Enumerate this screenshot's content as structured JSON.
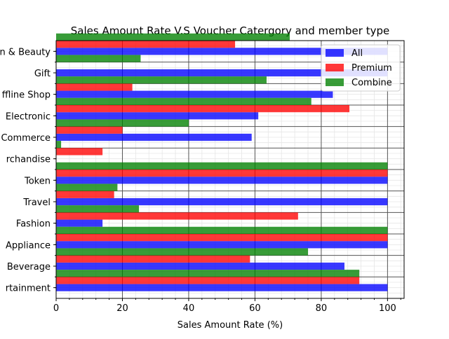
{
  "chart_data": {
    "type": "bar",
    "orientation": "horizontal",
    "title": "Sales Amount Rate V.S Voucher Catergory and member type",
    "xlabel": "Sales Amount Rate (%)",
    "ylabel": "",
    "xlim": [
      0,
      105
    ],
    "xticks": [
      0,
      20,
      40,
      60,
      80,
      100
    ],
    "grid": true,
    "legend_position": "top-right",
    "categories": [
      "Entertainment",
      "Beverage",
      "Appliance",
      "Fashion",
      "Travel",
      "Token",
      "Merchandise",
      "E-Commerce",
      "Electronic",
      "Offline Shop",
      "Gift",
      "Health & Beauty"
    ],
    "category_labels": [
      "rtainment",
      "Beverage",
      "Appliance",
      "Fashion",
      "Travel",
      "Token",
      "rchandise",
      "Commerce",
      "Electronic",
      "ffline Shop",
      "Gift",
      "n & Beauty"
    ],
    "series": [
      {
        "name": "All",
        "color": "#0000ff",
        "values": [
          100,
          87,
          100,
          14,
          100,
          100,
          0,
          59,
          61,
          83.5,
          100,
          100
        ]
      },
      {
        "name": "Premium",
        "color": "#ff0000",
        "values": [
          91.5,
          58.5,
          100,
          73,
          17.5,
          100,
          14,
          20,
          88.5,
          23,
          0,
          54
        ]
      },
      {
        "name": "Combine",
        "color": "#008000",
        "values": [
          91.5,
          76,
          100,
          25,
          18.5,
          100,
          1.5,
          40,
          77,
          63.5,
          25.5,
          70.5
        ]
      }
    ]
  }
}
